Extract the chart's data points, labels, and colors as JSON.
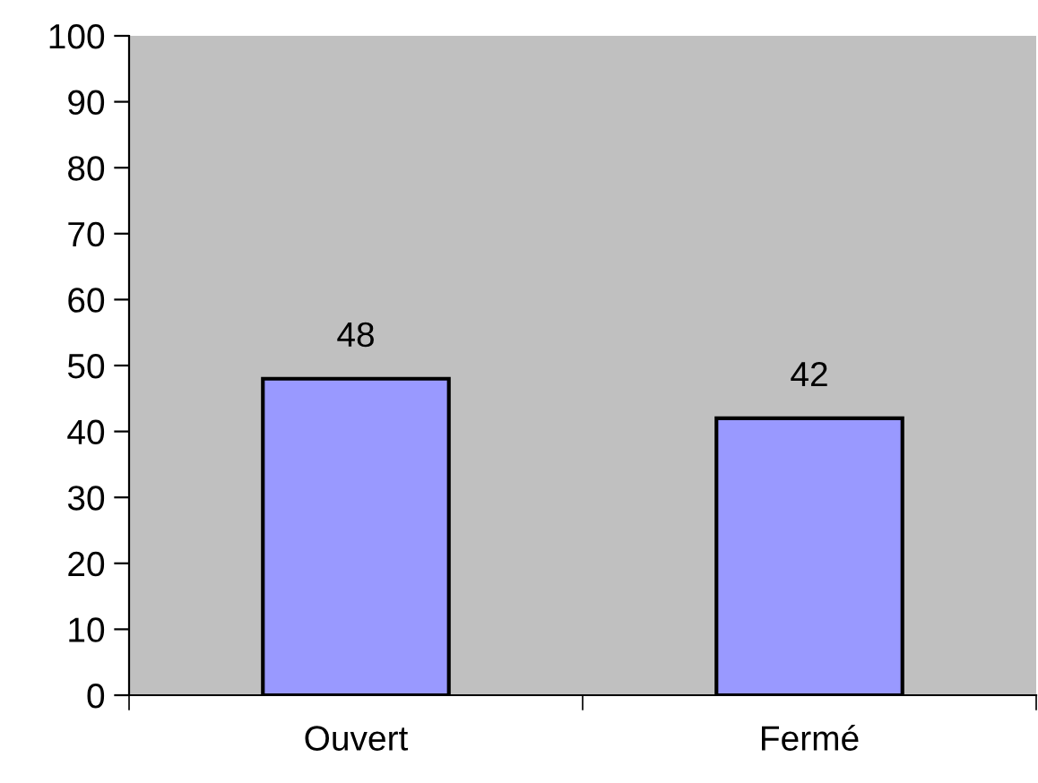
{
  "chart_data": {
    "type": "bar",
    "categories": [
      "Ouvert",
      "Fermé"
    ],
    "series": [
      {
        "color": "#9999ff",
        "values": [
          48,
          42
        ]
      }
    ],
    "ylim": [
      0,
      100
    ],
    "yticks": [
      0,
      10,
      20,
      30,
      40,
      50,
      60,
      70,
      80,
      90,
      100
    ],
    "grid": false,
    "legend": false,
    "data_labels": true
  }
}
